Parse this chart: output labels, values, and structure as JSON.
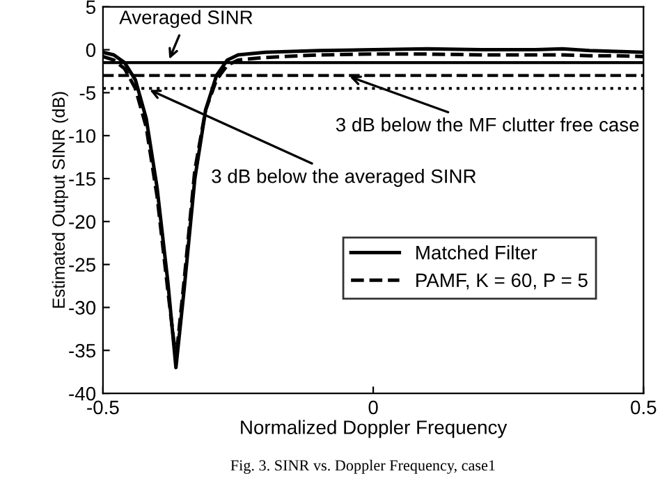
{
  "chart_data": {
    "type": "line",
    "xlabel": "Normalized Doppler Frequency",
    "ylabel": "Estimated Output SINR (dB)",
    "x": [
      -0.5,
      -0.48,
      -0.46,
      -0.44,
      -0.42,
      -0.4,
      -0.38,
      -0.365,
      -0.35,
      -0.33,
      -0.31,
      -0.29,
      -0.27,
      -0.25,
      -0.2,
      -0.1,
      0,
      0.1,
      0.2,
      0.3,
      0.35,
      0.4,
      0.45,
      0.5
    ],
    "series": [
      {
        "name": "Matched Filter",
        "color": "#000000",
        "line_style": "solid",
        "values": [
          -0.3,
          -0.6,
          -1.5,
          -3.5,
          -8,
          -16,
          -27,
          -37,
          -28,
          -15,
          -7,
          -3,
          -1.2,
          -0.6,
          -0.3,
          -0.1,
          0,
          0.1,
          0,
          0,
          0.1,
          -0.1,
          -0.2,
          -0.3
        ]
      },
      {
        "name": "PAMF, K = 60, P = 5",
        "color": "#000000",
        "line_style": "dashed",
        "values": [
          -0.8,
          -1.2,
          -2.2,
          -4.5,
          -9,
          -17,
          -28,
          -36,
          -27,
          -14,
          -7,
          -3.5,
          -1.8,
          -1.2,
          -0.9,
          -0.6,
          -0.5,
          -0.5,
          -0.6,
          -0.6,
          -0.6,
          -0.7,
          -0.7,
          -0.8
        ]
      }
    ],
    "ref_lines": [
      {
        "axis": "y",
        "value": -1.5,
        "color": "#000000",
        "line_style": "solid"
      },
      {
        "axis": "y",
        "value": -3,
        "color": "#000000",
        "line_style": "dashed"
      },
      {
        "axis": "y",
        "value": -4.5,
        "color": "#000000",
        "line_style": "dotted"
      }
    ],
    "annotations": [
      {
        "text": "Averaged SINR",
        "x": -0.38,
        "y": -1.5
      },
      {
        "text": "3 dB below the MF clutter free case",
        "x": -0.05,
        "y": -3
      },
      {
        "text": "3 dB below the averaged SINR",
        "x": -0.42,
        "y": -4.5
      },
      "Fig. 3. SINR vs. Doppler Frequency, case1"
    ],
    "xlim": [
      -0.5,
      0.5
    ],
    "xticks": [
      -0.5,
      0,
      0.5
    ],
    "ylim": [
      -40,
      5
    ],
    "yticks": [
      -40,
      -35,
      -30,
      -25,
      -20,
      -15,
      -10,
      -5,
      0,
      5
    ],
    "grid": false,
    "legend": "bottom right",
    "marker": "none"
  }
}
